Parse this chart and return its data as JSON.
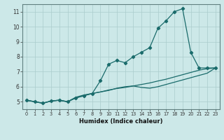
{
  "xlabel": "Humidex (Indice chaleur)",
  "bg_color": "#cce8e8",
  "grid_color": "#aacccc",
  "line_color": "#1a6b6b",
  "x": [
    0,
    1,
    2,
    3,
    4,
    5,
    6,
    7,
    8,
    9,
    10,
    11,
    12,
    13,
    14,
    15,
    16,
    17,
    18,
    19,
    20,
    21,
    22,
    23
  ],
  "line1": [
    5.1,
    5.0,
    4.9,
    5.05,
    5.1,
    5.0,
    5.25,
    5.4,
    5.55,
    6.4,
    7.5,
    7.75,
    7.6,
    8.0,
    8.3,
    8.6,
    9.9,
    10.4,
    11.0,
    11.2,
    8.3,
    7.25,
    7.25,
    7.25
  ],
  "line2": [
    5.1,
    5.0,
    4.9,
    5.05,
    5.1,
    5.0,
    5.25,
    5.4,
    5.55,
    5.65,
    5.75,
    5.9,
    6.0,
    6.05,
    5.95,
    5.9,
    6.0,
    6.15,
    6.3,
    6.45,
    6.6,
    6.75,
    6.9,
    7.25
  ],
  "line3": [
    5.1,
    5.0,
    4.9,
    5.05,
    5.1,
    5.0,
    5.3,
    5.45,
    5.55,
    5.65,
    5.78,
    5.88,
    5.95,
    6.05,
    6.15,
    6.25,
    6.38,
    6.5,
    6.65,
    6.8,
    6.95,
    7.1,
    7.2,
    7.25
  ],
  "ylim": [
    4.5,
    11.5
  ],
  "xlim": [
    -0.5,
    23.5
  ],
  "yticks": [
    5,
    6,
    7,
    8,
    9,
    10,
    11
  ],
  "xticks": [
    0,
    1,
    2,
    3,
    4,
    5,
    6,
    7,
    8,
    9,
    10,
    11,
    12,
    13,
    14,
    15,
    16,
    17,
    18,
    19,
    20,
    21,
    22,
    23
  ]
}
